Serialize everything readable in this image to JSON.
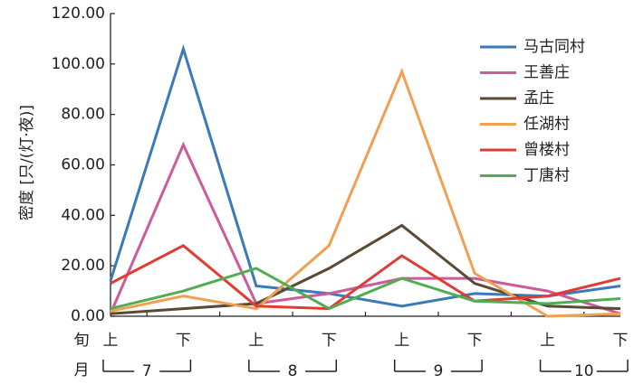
{
  "chart_data": {
    "type": "line",
    "ylabel": "密度 [只/(灯·夜)]",
    "ylim": [
      0,
      120
    ],
    "y_ticks": [
      "0.00",
      "20.00",
      "40.00",
      "60.00",
      "80.00",
      "100.00",
      "120.00"
    ],
    "x_row1_label": "旬",
    "x_row2_label": "月",
    "categories": [
      "上",
      "下",
      "上",
      "下",
      "上",
      "下",
      "上",
      "下"
    ],
    "month_groups": [
      "7",
      "8",
      "9",
      "10"
    ],
    "legend_position": "top-right",
    "grid": false,
    "series": [
      {
        "name": "马古同村",
        "color": "#3a7ab8",
        "values": [
          14,
          106,
          12,
          9,
          4,
          9,
          8,
          12
        ]
      },
      {
        "name": "王善庄",
        "color": "#cc5b9b",
        "values": [
          1,
          68,
          5,
          9,
          15,
          15,
          10,
          1
        ]
      },
      {
        "name": "孟庄",
        "color": "#5a4a33",
        "values": [
          1,
          3,
          5,
          19,
          36,
          13,
          4,
          3
        ]
      },
      {
        "name": "任湖村",
        "color": "#f0a050",
        "values": [
          2,
          8,
          3,
          28,
          97,
          17,
          0,
          1
        ]
      },
      {
        "name": "曾楼村",
        "color": "#e03c31",
        "values": [
          13,
          28,
          4,
          3,
          24,
          6,
          8,
          15
        ]
      },
      {
        "name": "丁唐村",
        "color": "#52ad52",
        "values": [
          3,
          10,
          19,
          3,
          15,
          6,
          5,
          7
        ]
      }
    ]
  }
}
